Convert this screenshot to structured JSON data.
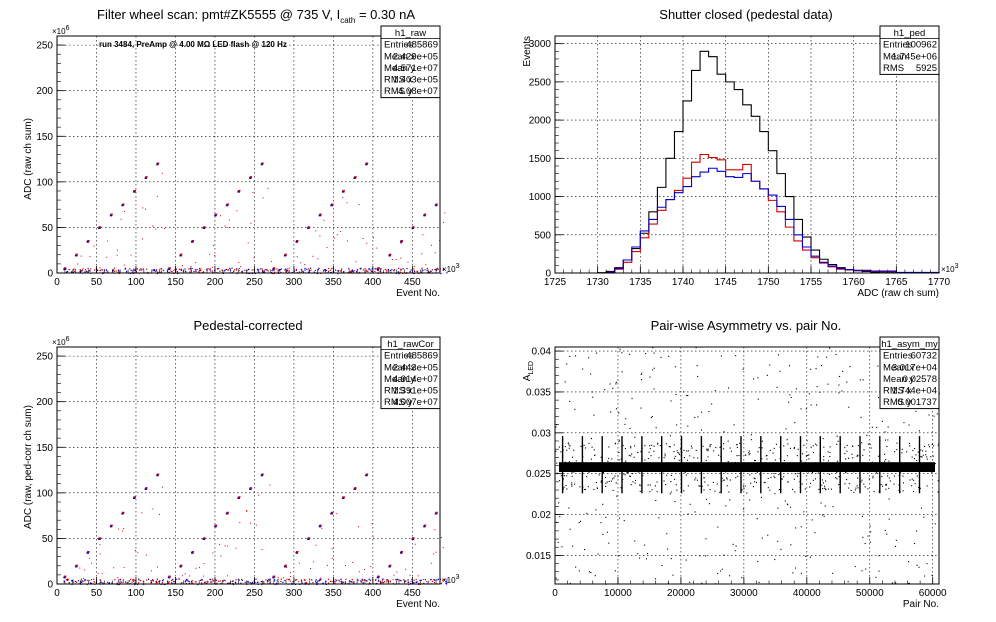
{
  "chart_data": [
    {
      "type": "scatter",
      "title": "Filter wheel scan: pmt#ZK5555 @   735 V, I",
      "title_sub": "cath",
      "title_end": " = 0.30 nA",
      "annotation": "run 3484, PreAmp @ 4.00 MΩ LED flash @  120 Hz",
      "xlabel": "Event No.",
      "ylabel": "ADC (raw ch sum)",
      "x_exponent": "×10",
      "x_exp_power": "3",
      "y_exponent": "×10",
      "y_exp_power": "6",
      "xlim": [
        0,
        485
      ],
      "ylim": [
        0,
        260
      ],
      "x_ticks": [
        "0",
        "50",
        "100",
        "150",
        "200",
        "250",
        "300",
        "350",
        "400",
        "450"
      ],
      "y_ticks": [
        "0",
        "50",
        "100",
        "150",
        "200",
        "250"
      ],
      "grid": true,
      "level_values": [
        5,
        20,
        35,
        50,
        64,
        75,
        90,
        105,
        120
      ],
      "stats": {
        "name": "h1_raw",
        "rows": [
          [
            "Entries",
            "485869"
          ],
          [
            "Mean x",
            "2.429e+05"
          ],
          [
            "Mean y",
            "4.571e+07"
          ],
          [
            "RMS x",
            "1.403e+05"
          ],
          [
            "RMS y",
            "4.08e+07"
          ]
        ]
      }
    },
    {
      "type": "line",
      "title": "Shutter closed (pedestal data)",
      "xlabel": "ADC (raw ch sum)",
      "ylabel": "Events",
      "x_exponent": "×10",
      "x_exp_power": "3",
      "xlim": [
        1725,
        1770
      ],
      "ylim": [
        0,
        3100
      ],
      "x_ticks": [
        "1725",
        "1730",
        "1735",
        "1740",
        "1745",
        "1750",
        "1755",
        "1760",
        "1765",
        "1770"
      ],
      "y_ticks": [
        "0",
        "500",
        "1000",
        "1500",
        "2000",
        "2500",
        "3000"
      ],
      "grid": true,
      "series": [
        {
          "color": "#000000",
          "x": [
            1725,
            1730,
            1731,
            1732,
            1733,
            1734,
            1735,
            1736,
            1737,
            1738,
            1739,
            1740,
            1741,
            1742,
            1743,
            1744,
            1745,
            1746,
            1747,
            1748,
            1749,
            1750,
            1751,
            1752,
            1753,
            1754,
            1755,
            1756,
            1757,
            1758,
            1759,
            1760,
            1761,
            1762,
            1763,
            1765,
            1770
          ],
          "values": [
            0,
            5,
            20,
            70,
            170,
            320,
            520,
            800,
            1120,
            1500,
            1850,
            2250,
            2650,
            2900,
            2830,
            2600,
            2500,
            2400,
            2200,
            2050,
            1850,
            1600,
            1300,
            1000,
            700,
            470,
            300,
            180,
            110,
            70,
            40,
            30,
            20,
            10,
            5,
            0,
            0
          ]
        },
        {
          "color": "#d40000",
          "x": [
            1725,
            1731,
            1732,
            1733,
            1734,
            1735,
            1736,
            1737,
            1738,
            1739,
            1740,
            1741,
            1742,
            1743,
            1744,
            1745,
            1746,
            1747,
            1748,
            1749,
            1750,
            1751,
            1752,
            1753,
            1754,
            1755,
            1756,
            1757,
            1758,
            1759,
            1760,
            1762,
            1765,
            1770
          ],
          "values": [
            0,
            10,
            50,
            140,
            280,
            460,
            640,
            820,
            960,
            1080,
            1240,
            1450,
            1550,
            1510,
            1480,
            1350,
            1350,
            1420,
            1200,
            1100,
            950,
            800,
            600,
            420,
            300,
            200,
            130,
            80,
            50,
            40,
            30,
            20,
            5,
            0
          ]
        },
        {
          "color": "#0000c8",
          "x": [
            1725,
            1731,
            1732,
            1733,
            1734,
            1735,
            1736,
            1737,
            1738,
            1739,
            1740,
            1741,
            1742,
            1743,
            1744,
            1745,
            1746,
            1747,
            1748,
            1749,
            1750,
            1751,
            1752,
            1753,
            1754,
            1755,
            1756,
            1757,
            1758,
            1759,
            1760,
            1762,
            1765,
            1770
          ],
          "values": [
            0,
            10,
            60,
            170,
            340,
            550,
            700,
            860,
            960,
            1050,
            1130,
            1260,
            1320,
            1370,
            1330,
            1260,
            1250,
            1300,
            1200,
            1100,
            1020,
            870,
            700,
            500,
            340,
            220,
            140,
            90,
            60,
            45,
            35,
            25,
            8,
            0
          ]
        }
      ],
      "stats": {
        "name": "h1_ped",
        "rows": [
          [
            "Entries",
            "100962"
          ],
          [
            "Mean",
            "1.745e+06"
          ],
          [
            "RMS",
            "5925"
          ]
        ]
      }
    },
    {
      "type": "scatter",
      "title": "Pedestal-corrected",
      "xlabel": "Event No.",
      "ylabel": "ADC (raw, ped-corr ch sum)",
      "x_exponent": "×10",
      "x_exp_power": "3",
      "y_exponent": "×10",
      "y_exp_power": "6",
      "xlim": [
        0,
        485
      ],
      "ylim": [
        0,
        260
      ],
      "x_ticks": [
        "0",
        "50",
        "100",
        "150",
        "200",
        "250",
        "300",
        "350",
        "400",
        "450"
      ],
      "y_ticks": [
        "0",
        "50",
        "100",
        "150",
        "200",
        "250"
      ],
      "grid": true,
      "level_values": [
        8,
        20,
        35,
        50,
        64,
        78,
        95,
        105,
        120
      ],
      "stats": {
        "name": "h1_rawCor",
        "rows": [
          [
            "Entries",
            "485869"
          ],
          [
            "Mean x",
            "2.443e+05"
          ],
          [
            "Mean y",
            "4.914e+07"
          ],
          [
            "RMS x",
            "1.391e+05"
          ],
          [
            "RMS y",
            "4.007e+07"
          ]
        ]
      }
    },
    {
      "type": "scatter",
      "title": "Pair-wise Asymmetry vs. pair No.",
      "xlabel": "Pair No.",
      "ylabel": "A",
      "ylabel_sub": "LED",
      "xlim": [
        0,
        61000
      ],
      "ylim": [
        0.0115,
        0.0405
      ],
      "x_ticks": [
        "0",
        "10000",
        "20000",
        "30000",
        "40000",
        "50000",
        "60000"
      ],
      "y_ticks": [
        "0.015",
        "0.02",
        "0.025",
        "0.03",
        "0.035",
        "0.04"
      ],
      "grid": true,
      "band_center": 0.0258,
      "band_halfwidth": 0.0006,
      "spike_count": 19,
      "stats": {
        "name": "h1_asym_my",
        "rows": [
          [
            "Entries",
            "60732"
          ],
          [
            "Mean x",
            "3.017e+04"
          ],
          [
            "Mean y",
            "0.02578"
          ],
          [
            "RMS x",
            "1.744e+04"
          ],
          [
            "RMS y",
            "0.001737"
          ]
        ]
      }
    }
  ]
}
